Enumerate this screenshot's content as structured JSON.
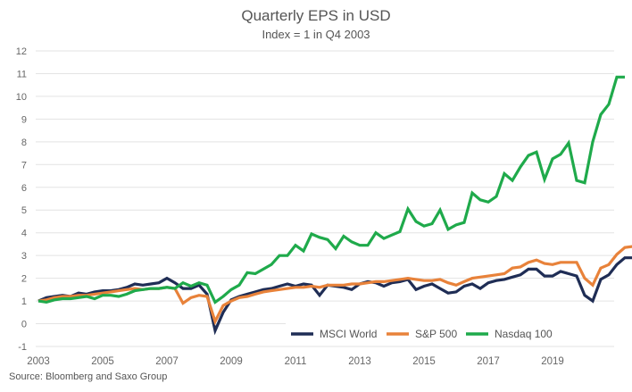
{
  "chart_data": {
    "type": "line",
    "title": "Quarterly EPS in USD",
    "subtitle": "Index = 1 in Q4 2003",
    "xlabel": "",
    "ylabel": "",
    "ylim": [
      -1,
      12
    ],
    "yticks": [
      "12",
      "11",
      "10",
      "9",
      "8",
      "7",
      "6",
      "5",
      "4",
      "3",
      "2",
      "1",
      "0",
      "-1"
    ],
    "ytick_values": [
      12,
      11,
      10,
      9,
      8,
      7,
      6,
      5,
      4,
      3,
      2,
      1,
      0,
      -1
    ],
    "xticks": [
      "2003",
      "2005",
      "2007",
      "2009",
      "2011",
      "2013",
      "2015",
      "2017",
      "2019"
    ],
    "xtick_values": [
      2003.75,
      2005.75,
      2007.75,
      2009.75,
      2011.75,
      2013.75,
      2015.75,
      2017.75,
      2019.75
    ],
    "x_start": 2003.75,
    "x_step": 0.25,
    "grid": true,
    "legend_position": "bottom-right",
    "series": [
      {
        "name": "MSCI World",
        "color": "#1f2d55",
        "values": [
          1.0,
          1.15,
          1.2,
          1.25,
          1.2,
          1.35,
          1.3,
          1.4,
          1.45,
          1.45,
          1.5,
          1.6,
          1.75,
          1.7,
          1.75,
          1.8,
          2.0,
          1.8,
          1.55,
          1.55,
          1.7,
          1.3,
          -0.3,
          0.5,
          1.05,
          1.2,
          1.3,
          1.4,
          1.5,
          1.55,
          1.65,
          1.75,
          1.65,
          1.75,
          1.7,
          1.25,
          1.7,
          1.65,
          1.6,
          1.5,
          1.75,
          1.85,
          1.8,
          1.65,
          1.8,
          1.85,
          1.95,
          1.5,
          1.65,
          1.75,
          1.55,
          1.35,
          1.4,
          1.65,
          1.75,
          1.55,
          1.8,
          1.9,
          1.95,
          2.05,
          2.15,
          2.4,
          2.4,
          2.1,
          2.1,
          2.3,
          2.2,
          2.1,
          1.25,
          1.0,
          1.95,
          2.15,
          2.6,
          2.9,
          2.9
        ]
      },
      {
        "name": "S&P 500",
        "color": "#e8823a",
        "values": [
          1.0,
          1.05,
          1.15,
          1.2,
          1.2,
          1.25,
          1.25,
          1.3,
          1.35,
          1.4,
          1.45,
          1.5,
          1.55,
          1.5,
          1.55,
          1.55,
          1.6,
          1.55,
          0.9,
          1.15,
          1.25,
          1.2,
          0.1,
          0.8,
          1.0,
          1.15,
          1.2,
          1.3,
          1.4,
          1.45,
          1.5,
          1.55,
          1.6,
          1.6,
          1.65,
          1.6,
          1.7,
          1.7,
          1.7,
          1.75,
          1.75,
          1.8,
          1.85,
          1.85,
          1.9,
          1.95,
          2.0,
          1.95,
          1.9,
          1.9,
          1.95,
          1.8,
          1.7,
          1.85,
          2.0,
          2.05,
          2.1,
          2.15,
          2.2,
          2.45,
          2.5,
          2.7,
          2.8,
          2.65,
          2.6,
          2.7,
          2.7,
          2.7,
          2.0,
          1.7,
          2.45,
          2.6,
          3.05,
          3.35,
          3.4
        ]
      },
      {
        "name": "Nasdaq 100",
        "color": "#1faa4b",
        "values": [
          1.0,
          0.95,
          1.05,
          1.1,
          1.1,
          1.15,
          1.2,
          1.1,
          1.25,
          1.25,
          1.2,
          1.3,
          1.45,
          1.5,
          1.55,
          1.55,
          1.6,
          1.55,
          1.8,
          1.65,
          1.8,
          1.7,
          0.95,
          1.2,
          1.5,
          1.7,
          2.25,
          2.2,
          2.4,
          2.6,
          3.0,
          3.0,
          3.45,
          3.2,
          3.95,
          3.8,
          3.7,
          3.3,
          3.85,
          3.6,
          3.45,
          3.45,
          4.0,
          3.75,
          3.9,
          4.05,
          5.05,
          4.5,
          4.3,
          4.4,
          5.0,
          4.15,
          4.35,
          4.45,
          5.75,
          5.45,
          5.35,
          5.6,
          6.6,
          6.3,
          6.9,
          7.4,
          7.55,
          6.35,
          7.25,
          7.45,
          7.95,
          6.3,
          6.2,
          8.0,
          9.2,
          9.65,
          10.85,
          10.85
        ]
      }
    ]
  },
  "source": "Source: Bloomberg and Saxo Group"
}
